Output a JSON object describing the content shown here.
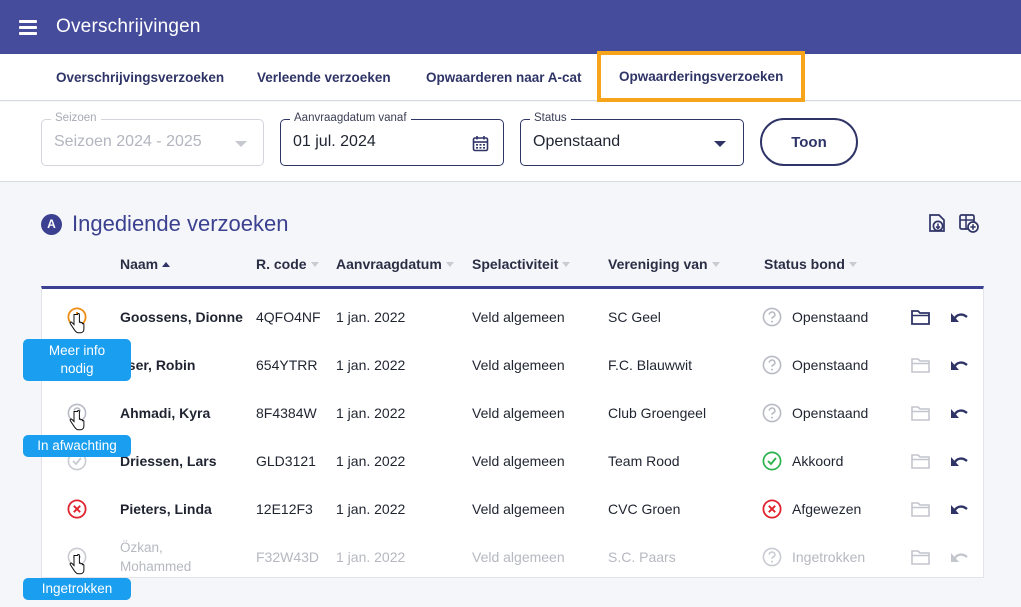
{
  "app": {
    "title": "Overschrijvingen"
  },
  "tabs": [
    {
      "label": "Overschrijvingsverzoeken"
    },
    {
      "label": "Verleende verzoeken"
    },
    {
      "label": "Opwaarderen naar A-cat"
    },
    {
      "label": "Opwaarderingsverzoeken",
      "highlighted": true
    }
  ],
  "filters": {
    "season": {
      "label": "Seizoen",
      "value": "Seizoen 2024 - 2025",
      "disabled": true
    },
    "date": {
      "label": "Aanvraagdatum vanaf",
      "value": "01 jul. 2024"
    },
    "status": {
      "label": "Status",
      "value": "Openstaand"
    },
    "submit_label": "Toon"
  },
  "section": {
    "badge": "A",
    "title": "Ingediende verzoeken"
  },
  "table": {
    "columns": [
      "Naam",
      "R. code",
      "Aanvraagdatum",
      "Spelactiviteit",
      "Vereniging van",
      "Status bond"
    ],
    "rows": [
      {
        "name": "Goossens, Dionne",
        "code": "4QFO4NF",
        "date": "1 jan. 2022",
        "activity": "Veld algemeen",
        "club": "SC Geel",
        "status": "Openstaand",
        "status_icon": "question-icon",
        "row_icon": "alert-icon"
      },
      {
        "name": "sser, Robin",
        "code": "654YTRR",
        "date": "1 jan. 2022",
        "activity": "Veld algemeen",
        "club": "F.C. Blauwwit",
        "status": "Openstaand",
        "status_icon": "question-icon",
        "row_icon": ""
      },
      {
        "name": "Ahmadi, Kyra",
        "code": "8F4384W",
        "date": "1 jan. 2022",
        "activity": "Veld algemeen",
        "club": "Club Groengeel",
        "status": "Openstaand",
        "status_icon": "question-icon",
        "row_icon": "question-icon"
      },
      {
        "name": "Driessen, Lars",
        "code": "GLD3121",
        "date": "1 jan. 2022",
        "activity": "Veld algemeen",
        "club": "Team Rood",
        "status": "Akkoord",
        "status_icon": "check-icon",
        "row_icon": "check-icon"
      },
      {
        "name": "Pieters, Linda",
        "code": "12E12F3",
        "date": "1 jan. 2022",
        "activity": "Veld algemeen",
        "club": "CVC Groen",
        "status": "Afgewezen",
        "status_icon": "reject-icon",
        "row_icon": "reject-icon"
      },
      {
        "name": "Özkan, Mohammed",
        "code": "F32W43D",
        "date": "1 jan. 2022",
        "activity": "Veld algemeen",
        "club": "S.C. Paars",
        "status": "Ingetrokken",
        "status_icon": "question-icon",
        "row_icon": "withdrawn-icon"
      }
    ]
  },
  "tooltips": [
    "Meer info nodig",
    "In afwachting",
    "Ingetrokken"
  ],
  "colors": {
    "header": "#464c9c",
    "accent": "#3b4190",
    "highlight": "#f6a41a",
    "tooltip": "#1a9ef0",
    "warn": "#f08c12",
    "ok": "#2bb24c",
    "error": "#e0232d"
  }
}
